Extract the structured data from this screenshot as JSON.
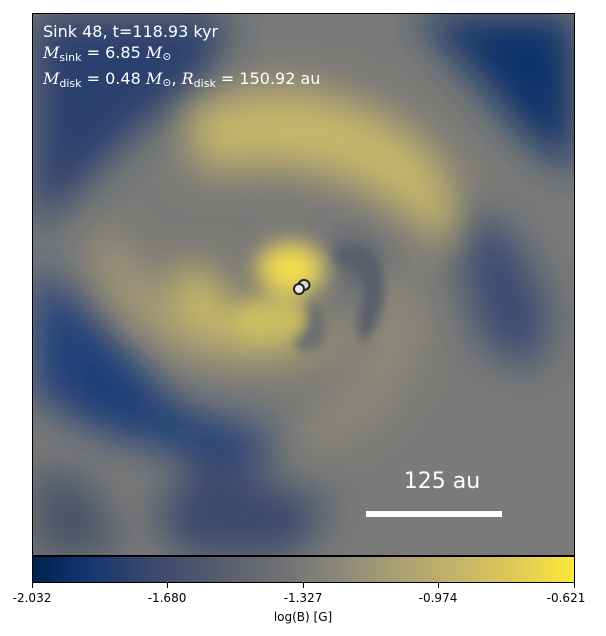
{
  "annotation": {
    "line1": "Sink 48, t=118.93 kyr",
    "m_sink_symbol": "M",
    "m_sink_sub": "sink",
    "m_sink_value": "= 6.85",
    "m_disk_symbol": "M",
    "m_disk_sub": "disk",
    "m_disk_value": "= 0.48",
    "r_disk_symbol": "R",
    "r_disk_sub": "disk",
    "r_disk_value": "= 150.92",
    "r_disk_unit": "au",
    "sun_symbol": "⊙"
  },
  "scalebar": {
    "label": "125 au"
  },
  "colorbar": {
    "label": "log(B) [G]",
    "ticks": [
      "-2.032",
      "-1.680",
      "-1.327",
      "-0.974",
      "-0.621"
    ],
    "colormap": "cividis",
    "colors": {
      "min": "#00224e",
      "mid": "#7c7b78",
      "max": "#fee838"
    }
  },
  "sink_markers": {
    "count": 2
  }
}
